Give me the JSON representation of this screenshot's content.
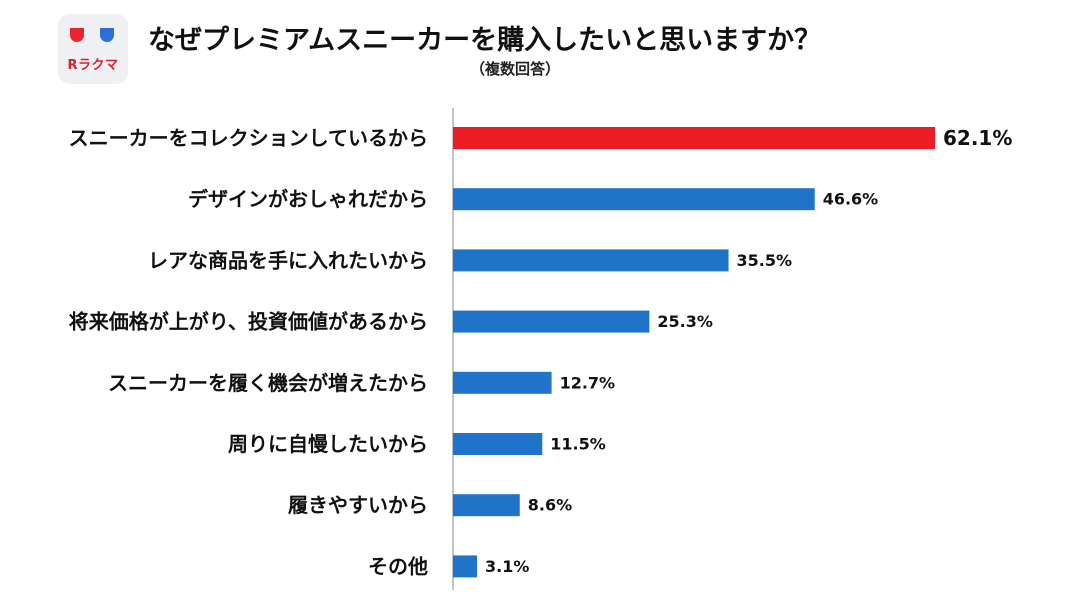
{
  "header": {
    "title": "なぜプレミアムスニーカーを購入したいと思いますか？",
    "subtitle": "（複数回答）",
    "logo_text": "Rラクマ"
  },
  "colors": {
    "highlight": "#ee1c25",
    "bar": "#1f73c8",
    "axis": "#b0b0b0"
  },
  "chart_data": {
    "type": "bar",
    "orientation": "horizontal",
    "title": "なぜプレミアムスニーカーを購入したいと思いますか？",
    "subtitle": "（複数回答）",
    "categories": [
      "スニーカーをコレクションしているから",
      "デザインがおしゃれだから",
      "レアな商品を手に入れたいから",
      "将来価格が上がり、投資価値があるから",
      "スニーカーを履く機会が増えたから",
      "周りに自慢したいから",
      "履きやすいから",
      "その他"
    ],
    "values": [
      62.1,
      46.6,
      35.5,
      25.3,
      12.7,
      11.5,
      8.6,
      3.1
    ],
    "value_labels": [
      "62.1%",
      "46.6%",
      "35.5%",
      "25.3%",
      "12.7%",
      "11.5%",
      "8.6%",
      "3.1%"
    ],
    "unit": "%",
    "highlight_index": 0,
    "xlim": [
      0,
      62.1
    ],
    "grid": false
  }
}
